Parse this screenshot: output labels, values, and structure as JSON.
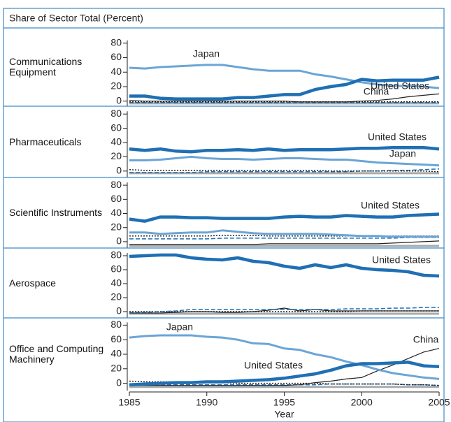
{
  "header": {
    "title": "Share of Sector Total (Percent)"
  },
  "chart_data": [
    {
      "type": "line",
      "title": "Communications Equipment",
      "x": [
        1985,
        1986,
        1987,
        1988,
        1989,
        1990,
        1991,
        1992,
        1993,
        1994,
        1995,
        1996,
        1997,
        1998,
        1999,
        2000,
        2001,
        2002,
        2003,
        2004,
        2005
      ],
      "ylim": [
        -7,
        101
      ],
      "yticks": [
        0,
        20,
        40,
        60,
        80
      ],
      "series": [
        {
          "color": "#aaaaaa",
          "dash": "solid",
          "width": 3,
          "values": [
            -3,
            -3,
            -3,
            -3,
            -3,
            -3,
            -3,
            -3,
            -3,
            -3,
            -3,
            -3,
            -3,
            -3,
            -3,
            -3,
            -3,
            -3,
            -3,
            -3,
            -3
          ]
        },
        {
          "color": "#1f6fb4",
          "dash": "dashed",
          "width": 1.5,
          "values": [
            -2,
            -2,
            -2,
            -2,
            -2,
            -2,
            -2,
            -2,
            -2,
            -2,
            -2,
            -2,
            -2,
            -2,
            -2,
            -2,
            -2,
            -2,
            -2,
            -2,
            -2
          ]
        },
        {
          "color": "#222222",
          "dash": "dotted",
          "width": 1.5,
          "values": [
            -1,
            -1,
            -1,
            -1,
            -1,
            -1,
            -1,
            -1,
            -1,
            -1,
            -1,
            -1,
            -1,
            -1,
            -1,
            -1,
            -1,
            -1,
            -1,
            -1,
            -1
          ]
        },
        {
          "name": "China",
          "color": "#222222",
          "dash": "solid",
          "width": 1.2,
          "values": [
            1,
            0,
            0,
            0,
            0,
            0,
            0,
            0,
            0,
            0,
            0,
            -1,
            -1,
            -1,
            -1,
            0,
            1,
            3,
            6,
            8,
            10
          ]
        },
        {
          "name": "Japan",
          "color": "#6ba5d6",
          "dash": "solid",
          "width": 3,
          "values": [
            46,
            45,
            47,
            48,
            49,
            50,
            50,
            47,
            44,
            42,
            42,
            42,
            37,
            34,
            30,
            26,
            23,
            21,
            21,
            20,
            18
          ]
        },
        {
          "name": "United States",
          "color": "#1f6fb4",
          "dash": "solid",
          "width": 4.5,
          "values": [
            7,
            7,
            4,
            3,
            3,
            3,
            3,
            5,
            5,
            7,
            9,
            9,
            16,
            20,
            23,
            30,
            28,
            29,
            29,
            29,
            33
          ]
        }
      ]
    },
    {
      "type": "line",
      "title": "Pharmaceuticals",
      "x": [
        1985,
        1986,
        1987,
        1988,
        1989,
        1990,
        1991,
        1992,
        1993,
        1994,
        1995,
        1996,
        1997,
        1998,
        1999,
        2000,
        2001,
        2002,
        2003,
        2004,
        2005
      ],
      "ylim": [
        -9,
        91
      ],
      "yticks": [
        0,
        20,
        40,
        60,
        80
      ],
      "series": [
        {
          "color": "#aaaaaa",
          "dash": "solid",
          "width": 3,
          "values": [
            -3,
            -3,
            -3,
            -3,
            -3,
            -3,
            -3,
            -3,
            -3,
            -3,
            -3,
            -3,
            -3,
            -3,
            -3,
            -3,
            -3,
            -3,
            -3,
            -3,
            -3
          ]
        },
        {
          "color": "#1f6fb4",
          "dash": "dashed",
          "width": 1.5,
          "values": [
            -2,
            -2,
            -2,
            -2,
            -2,
            -1,
            -1,
            -1,
            -1,
            -1,
            -1,
            -1,
            -1,
            -1,
            -1,
            0,
            0,
            1,
            1,
            2,
            3
          ]
        },
        {
          "color": "#222222",
          "dash": "dotted",
          "width": 1.5,
          "values": [
            2,
            1,
            1,
            1,
            1,
            1,
            1,
            1,
            1,
            1,
            1,
            1,
            1,
            0,
            0,
            0,
            0,
            0,
            0,
            0,
            -1
          ]
        },
        {
          "name": "Japan",
          "color": "#6ba5d6",
          "dash": "solid",
          "width": 3,
          "values": [
            15,
            15,
            16,
            18,
            20,
            18,
            17,
            17,
            16,
            17,
            18,
            18,
            17,
            16,
            16,
            14,
            12,
            11,
            10,
            9,
            8
          ]
        },
        {
          "name": "United States",
          "color": "#1f6fb4",
          "dash": "solid",
          "width": 4.5,
          "values": [
            31,
            29,
            31,
            28,
            27,
            29,
            29,
            30,
            29,
            31,
            29,
            30,
            30,
            30,
            31,
            32,
            32,
            33,
            33,
            33,
            31
          ]
        }
      ]
    },
    {
      "type": "line",
      "title": "Scientific Instruments",
      "x": [
        1985,
        1986,
        1987,
        1988,
        1989,
        1990,
        1991,
        1992,
        1993,
        1994,
        1995,
        1996,
        1997,
        1998,
        1999,
        2000,
        2001,
        2002,
        2003,
        2004,
        2005
      ],
      "ylim": [
        -9,
        91
      ],
      "yticks": [
        0,
        20,
        40,
        60,
        80
      ],
      "series": [
        {
          "color": "#aaaaaa",
          "dash": "solid",
          "width": 3,
          "values": [
            -6,
            -6,
            -6,
            -6,
            -6,
            -6,
            -6,
            -6,
            -6,
            -6,
            -6,
            -6,
            -6,
            -6,
            -6,
            -6,
            -6,
            -6,
            -6,
            -6,
            -6
          ]
        },
        {
          "color": "#222222",
          "dash": "solid",
          "width": 1.2,
          "values": [
            -4,
            -4,
            -4,
            -4,
            -4,
            -4,
            -4,
            -4,
            -4,
            -3,
            -3,
            -3,
            -3,
            -3,
            -3,
            -3,
            -3,
            -2,
            -1,
            0,
            1
          ]
        },
        {
          "color": "#1f6fb4",
          "dash": "dashed",
          "width": 1.5,
          "values": [
            4,
            4,
            4,
            4,
            4,
            4,
            5,
            5,
            5,
            5,
            5,
            5,
            5,
            5,
            5,
            5,
            5,
            5,
            6,
            6,
            6
          ]
        },
        {
          "color": "#222222",
          "dash": "dotted",
          "width": 1.5,
          "values": [
            8,
            8,
            8,
            8,
            8,
            8,
            9,
            9,
            9,
            8,
            8,
            8,
            8,
            8,
            8,
            8,
            8,
            8,
            8,
            8,
            8
          ]
        },
        {
          "color": "#6ba5d6",
          "dash": "solid",
          "width": 3,
          "values": [
            13,
            13,
            11,
            12,
            13,
            13,
            16,
            14,
            12,
            11,
            11,
            11,
            11,
            10,
            9,
            8,
            8,
            7,
            7,
            7,
            7
          ]
        },
        {
          "name": "United States",
          "color": "#1f6fb4",
          "dash": "solid",
          "width": 4.5,
          "values": [
            32,
            29,
            35,
            35,
            34,
            34,
            33,
            33,
            33,
            33,
            35,
            36,
            35,
            35,
            37,
            36,
            35,
            35,
            37,
            38,
            39
          ]
        }
      ]
    },
    {
      "type": "line",
      "title": "Aerospace",
      "x": [
        1985,
        1986,
        1987,
        1988,
        1989,
        1990,
        1991,
        1992,
        1993,
        1994,
        1995,
        1996,
        1997,
        1998,
        1999,
        2000,
        2001,
        2002,
        2003,
        2004,
        2005
      ],
      "ylim": [
        -9,
        91
      ],
      "yticks": [
        0,
        20,
        40,
        60,
        80
      ],
      "series": [
        {
          "color": "#aaaaaa",
          "dash": "solid",
          "width": 3,
          "values": [
            -3,
            -3,
            -3,
            -3,
            -3,
            -3,
            -3,
            -3,
            -3,
            -3,
            -3,
            -3,
            -3,
            -3,
            -3,
            -3,
            -3,
            -3,
            -3,
            -3,
            -3
          ]
        },
        {
          "color": "#222222",
          "dash": "solid",
          "width": 1.2,
          "values": [
            -2,
            -2,
            -2,
            -1,
            0,
            0,
            -1,
            -1,
            0,
            2,
            5,
            1,
            3,
            1,
            1,
            1,
            1,
            1,
            1,
            1,
            1
          ]
        },
        {
          "color": "#222222",
          "dash": "dotted",
          "width": 1.5,
          "values": [
            0,
            0,
            0,
            0,
            0,
            0,
            0,
            0,
            0,
            0,
            0,
            0,
            0,
            0,
            0,
            1,
            1,
            1,
            1,
            1,
            1
          ]
        },
        {
          "color": "#1f6fb4",
          "dash": "dashed",
          "width": 1.5,
          "values": [
            -1,
            -1,
            0,
            1,
            3,
            3,
            3,
            3,
            3,
            3,
            3,
            3,
            3,
            3,
            4,
            4,
            4,
            5,
            5,
            6,
            6
          ]
        },
        {
          "name": "United States",
          "color": "#1f6fb4",
          "dash": "solid",
          "width": 4.5,
          "values": [
            79,
            80,
            81,
            81,
            77,
            75,
            74,
            77,
            72,
            70,
            65,
            62,
            67,
            63,
            67,
            62,
            60,
            59,
            57,
            52,
            51
          ]
        }
      ]
    },
    {
      "type": "line",
      "title": "Office and Computing Machinery",
      "x": [
        1985,
        1986,
        1987,
        1988,
        1989,
        1990,
        1991,
        1992,
        1993,
        1994,
        1995,
        1996,
        1997,
        1998,
        1999,
        2000,
        2001,
        2002,
        2003,
        2004,
        2005
      ],
      "ylim": [
        -10,
        90
      ],
      "yticks": [
        0,
        20,
        40,
        60,
        80
      ],
      "xlim": [
        1985,
        2005
      ],
      "xticks": [
        1985,
        1990,
        1995,
        2000,
        2005
      ],
      "xlabel": "Year",
      "series": [
        {
          "color": "#aaaaaa",
          "dash": "solid",
          "width": 3,
          "values": [
            -5,
            -5,
            -5,
            -5,
            -5,
            -5,
            -5,
            -5,
            -5,
            -5,
            -5,
            -5,
            -5,
            -5,
            -5,
            -5,
            -5,
            -5,
            -5,
            -5,
            -5
          ]
        },
        {
          "color": "#1f6fb4",
          "dash": "dashed",
          "width": 1.5,
          "values": [
            -2,
            -2,
            -2,
            -2,
            -2,
            -2,
            -2,
            -2,
            -2,
            -2,
            -2,
            -2,
            -2,
            -1,
            -1,
            -1,
            -1,
            -1,
            -2,
            -2,
            -3
          ]
        },
        {
          "color": "#222222",
          "dash": "dotted",
          "width": 1.5,
          "values": [
            3,
            2,
            2,
            2,
            1,
            1,
            1,
            0,
            0,
            0,
            0,
            0,
            0,
            -1,
            -1,
            -1,
            -1,
            -1,
            -2,
            -2,
            -3
          ]
        },
        {
          "name": "China",
          "color": "#222222",
          "dash": "solid",
          "width": 1.2,
          "values": [
            -3,
            -3,
            -3,
            -3,
            -3,
            -3,
            -3,
            -3,
            -3,
            -3,
            -3,
            -2,
            1,
            3,
            6,
            8,
            17,
            25,
            34,
            43,
            48
          ]
        },
        {
          "name": "Japan",
          "color": "#6ba5d6",
          "dash": "solid",
          "width": 3,
          "values": [
            63,
            65,
            66,
            66,
            66,
            64,
            63,
            60,
            55,
            54,
            48,
            46,
            40,
            36,
            30,
            25,
            19,
            14,
            11,
            8,
            6
          ]
        },
        {
          "name": "United States",
          "color": "#1f6fb4",
          "dash": "solid",
          "width": 4.5,
          "values": [
            -2,
            -1,
            0,
            1,
            1,
            2,
            2,
            3,
            4,
            5,
            7,
            10,
            13,
            18,
            24,
            27,
            27,
            28,
            29,
            24,
            23
          ]
        }
      ]
    }
  ]
}
